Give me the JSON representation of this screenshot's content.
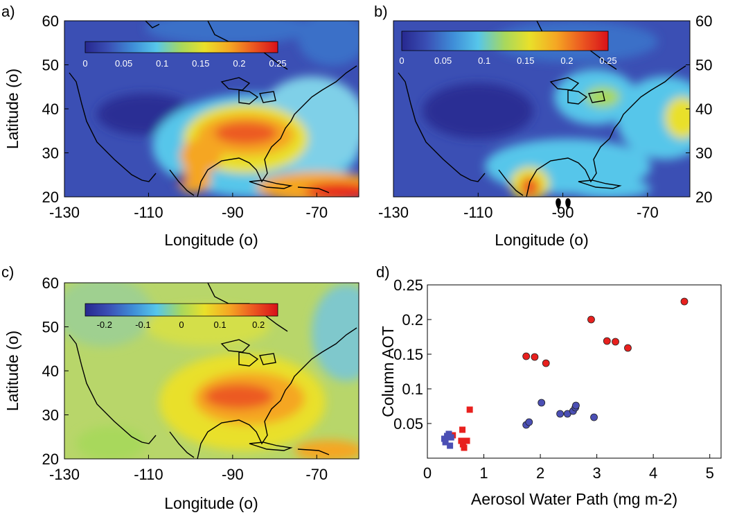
{
  "panels": {
    "a": {
      "label": "a)",
      "xlabel": "Longitude (o)",
      "ylabel": "Latitude (o)",
      "xticks": [
        "-130",
        "-110",
        "-90",
        "-70"
      ],
      "yticks": [
        "60",
        "50",
        "40",
        "30",
        "20"
      ],
      "colorbar_ticks": [
        "0",
        "0.05",
        "0.1",
        "0.15",
        "0.2",
        "0.25"
      ]
    },
    "b": {
      "label": "b)",
      "xlabel": "Longitude (o)",
      "yticks": [
        "60",
        "50",
        "40",
        "30",
        "20"
      ],
      "xticks": [
        "-130",
        "-110",
        "-90",
        "-70"
      ],
      "colorbar_ticks": [
        "0",
        "0.05",
        "0.1",
        "0.15",
        "0.2",
        "0.25"
      ]
    },
    "c": {
      "label": "c)",
      "xlabel": "Longitude (o)",
      "ylabel": "Latitude (o)",
      "xticks": [
        "-130",
        "-110",
        "-90",
        "-70"
      ],
      "yticks": [
        "60",
        "50",
        "40",
        "30",
        "20"
      ],
      "colorbar_ticks": [
        "-0.2",
        "-0.1",
        "0",
        "0.1",
        "0.2"
      ]
    }
  },
  "chart_data": [
    {
      "type": "heatmap",
      "panel": "a",
      "xlabel": "Longitude (o)",
      "ylabel": "Latitude (o)",
      "xlim": [
        -130,
        -60
      ],
      "ylim": [
        20,
        60
      ],
      "colorbar_range": [
        0,
        0.25
      ],
      "hotspots": [
        {
          "lon": -88,
          "lat": 34,
          "value": 0.19
        },
        {
          "lon": -70,
          "lat": 21,
          "value": 0.24
        },
        {
          "lon": -80,
          "lat": 38,
          "value": 0.16
        },
        {
          "lon": -97,
          "lat": 28,
          "value": 0.15
        }
      ]
    },
    {
      "type": "heatmap",
      "panel": "b",
      "xlabel": "Longitude (o)",
      "xlim": [
        -130,
        -60
      ],
      "ylim": [
        20,
        60
      ],
      "colorbar_range": [
        0,
        0.25
      ],
      "hotspots": [
        {
          "lon": -92,
          "lat": 21,
          "value": 0.22
        },
        {
          "lon": -62,
          "lat": 37,
          "value": 0.16
        },
        {
          "lon": -82,
          "lat": 40,
          "value": 0.12
        }
      ]
    },
    {
      "type": "heatmap",
      "panel": "c",
      "xlabel": "Longitude (o)",
      "ylabel": "Latitude (o)",
      "xlim": [
        -130,
        -60
      ],
      "ylim": [
        20,
        60
      ],
      "colorbar_range": [
        -0.25,
        0.25
      ],
      "hotspots": [
        {
          "lon": -88,
          "lat": 34,
          "value": 0.17
        },
        {
          "lon": -68,
          "lat": 21,
          "value": 0.14
        }
      ]
    },
    {
      "type": "scatter",
      "panel": "d",
      "label": "d)",
      "xlabel": "Aerosol Water Path (mg m-2)",
      "ylabel": "Column AOT",
      "xlim": [
        0,
        5.2
      ],
      "ylim": [
        0,
        0.25
      ],
      "xticks": [
        "0",
        "1",
        "2",
        "3",
        "4",
        "5"
      ],
      "yticks": [
        "0.05",
        "0.1",
        "0.15",
        "0.2",
        "0.25"
      ],
      "series": [
        {
          "marker": "circle",
          "color": "#e8201e",
          "points": [
            [
              1.75,
              0.147
            ],
            [
              1.9,
              0.146
            ],
            [
              2.1,
              0.137
            ],
            [
              2.9,
              0.2
            ],
            [
              3.18,
              0.169
            ],
            [
              3.33,
              0.168
            ],
            [
              3.55,
              0.159
            ],
            [
              4.55,
              0.226
            ]
          ]
        },
        {
          "marker": "circle",
          "color": "#4b4fb4",
          "points": [
            [
              1.75,
              0.048
            ],
            [
              1.8,
              0.052
            ],
            [
              2.02,
              0.08
            ],
            [
              2.35,
              0.064
            ],
            [
              2.48,
              0.064
            ],
            [
              2.58,
              0.068
            ],
            [
              2.62,
              0.073
            ],
            [
              2.63,
              0.076
            ],
            [
              2.95,
              0.059
            ]
          ]
        },
        {
          "marker": "square",
          "color": "#e8201e",
          "points": [
            [
              0.45,
              0.033
            ],
            [
              0.6,
              0.025
            ],
            [
              0.62,
              0.041
            ],
            [
              0.63,
              0.02
            ],
            [
              0.65,
              0.015
            ],
            [
              0.7,
              0.025
            ],
            [
              0.75,
              0.07
            ]
          ]
        },
        {
          "marker": "square",
          "color": "#4b4fb4",
          "points": [
            [
              0.3,
              0.028
            ],
            [
              0.32,
              0.023
            ],
            [
              0.35,
              0.032
            ],
            [
              0.4,
              0.018
            ],
            [
              0.42,
              0.03
            ],
            [
              0.38,
              0.035
            ]
          ]
        }
      ]
    }
  ]
}
